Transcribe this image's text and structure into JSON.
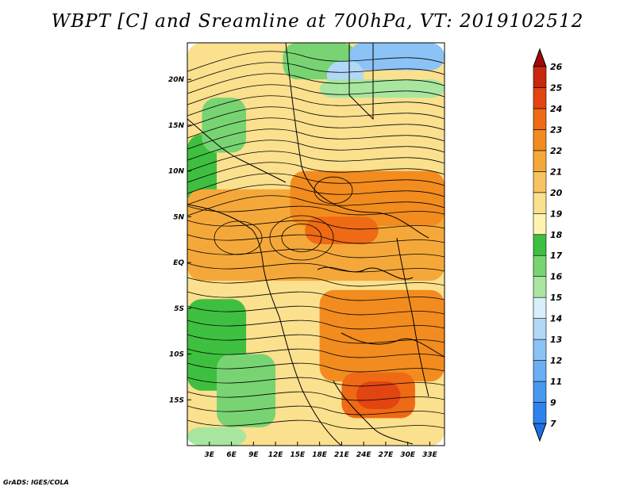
{
  "title": "WBPT [C] and Sreamline at 700hPa, VT: 2019102512",
  "credit": "GrADS: IGES/COLA",
  "map": {
    "lon_range": [
      0,
      35
    ],
    "lat_range": [
      -20,
      24
    ],
    "x_ticks": [
      {
        "value": 3,
        "label": "3E"
      },
      {
        "value": 6,
        "label": "6E"
      },
      {
        "value": 9,
        "label": "9E"
      },
      {
        "value": 12,
        "label": "12E"
      },
      {
        "value": 15,
        "label": "15E"
      },
      {
        "value": 18,
        "label": "18E"
      },
      {
        "value": 21,
        "label": "21E"
      },
      {
        "value": 24,
        "label": "24E"
      },
      {
        "value": 27,
        "label": "27E"
      },
      {
        "value": 30,
        "label": "30E"
      },
      {
        "value": 33,
        "label": "33E"
      }
    ],
    "y_ticks": [
      {
        "value": 20,
        "label": "20N"
      },
      {
        "value": 15,
        "label": "15N"
      },
      {
        "value": 10,
        "label": "10N"
      },
      {
        "value": 5,
        "label": "5N"
      },
      {
        "value": 0,
        "label": "EQ"
      },
      {
        "value": -5,
        "label": "5S"
      },
      {
        "value": -10,
        "label": "10S"
      },
      {
        "value": -15,
        "label": "15S"
      }
    ]
  },
  "colorbar": {
    "levels": [
      "7",
      "9",
      "11",
      "12",
      "13",
      "14",
      "15",
      "16",
      "17",
      "18",
      "19",
      "20",
      "21",
      "22",
      "23",
      "24",
      "25",
      "26"
    ],
    "colors": [
      "#1e6fe0",
      "#2e82ec",
      "#4898f2",
      "#6aaef4",
      "#8cc3f6",
      "#b2d8f8",
      "#d8eefa",
      "#a8e6a0",
      "#78d472",
      "#3fbf3f",
      "#fff4b0",
      "#fbe08e",
      "#f7c462",
      "#f5a83a",
      "#f28c1e",
      "#ee6a14",
      "#e24412",
      "#c8280e",
      "#9e0a0a"
    ]
  },
  "field_regions": [
    {
      "color": "#fbe08e",
      "lon": 0,
      "lat": 24,
      "w": 35,
      "h": 44
    },
    {
      "color": "#3fbf3f",
      "lon": 0,
      "lat": 14,
      "w": 4,
      "h": 8
    },
    {
      "color": "#78d472",
      "lon": 2,
      "lat": 18,
      "w": 6,
      "h": 6
    },
    {
      "color": "#78d472",
      "lon": 13,
      "lat": 24,
      "w": 10,
      "h": 4
    },
    {
      "color": "#8cc3f6",
      "lon": 22,
      "lat": 24,
      "w": 13,
      "h": 3
    },
    {
      "color": "#b2d8f8",
      "lon": 19,
      "lat": 22,
      "w": 5,
      "h": 3
    },
    {
      "color": "#a8e6a0",
      "lon": 18,
      "lat": 20,
      "w": 17,
      "h": 2
    },
    {
      "color": "#f5a83a",
      "lon": 0,
      "lat": 8,
      "w": 35,
      "h": 10
    },
    {
      "color": "#f28c1e",
      "lon": 14,
      "lat": 10,
      "w": 21,
      "h": 6
    },
    {
      "color": "#ee6a14",
      "lon": 16,
      "lat": 5,
      "w": 10,
      "h": 3
    },
    {
      "color": "#f28c1e",
      "lon": 18,
      "lat": -3,
      "w": 17,
      "h": 10
    },
    {
      "color": "#ee6a14",
      "lon": 21,
      "lat": -12,
      "w": 10,
      "h": 5
    },
    {
      "color": "#e24412",
      "lon": 23,
      "lat": -13,
      "w": 6,
      "h": 3
    },
    {
      "color": "#3fbf3f",
      "lon": 0,
      "lat": -4,
      "w": 8,
      "h": 10
    },
    {
      "color": "#78d472",
      "lon": 4,
      "lat": -10,
      "w": 8,
      "h": 8
    },
    {
      "color": "#a8e6a0",
      "lon": 0,
      "lat": -18,
      "w": 8,
      "h": 2
    }
  ]
}
